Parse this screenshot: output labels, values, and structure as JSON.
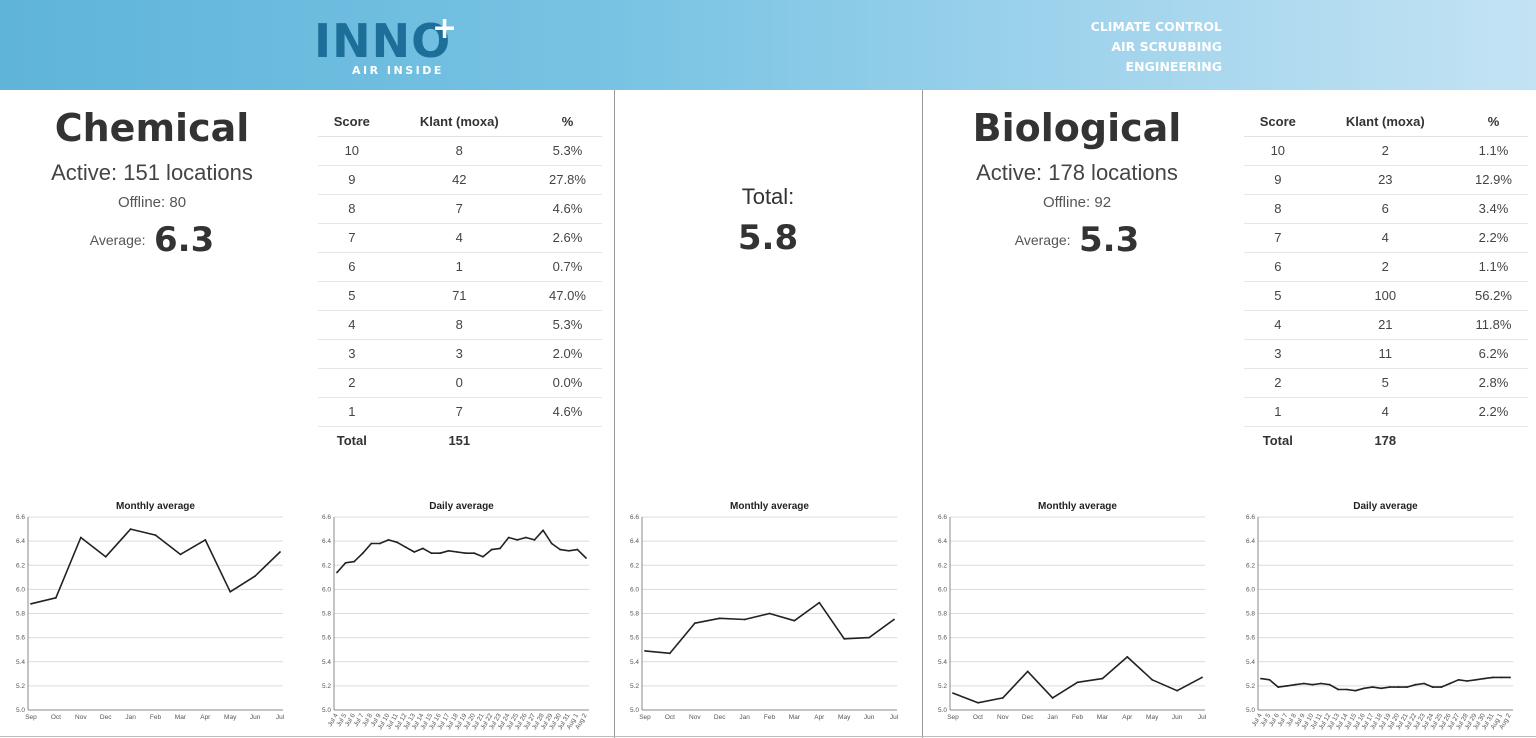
{
  "header": {
    "logo_text": "INNO",
    "logo_plus": "+",
    "logo_sub": "AIR INSIDE",
    "tagline": [
      "CLIMATE CONTROL",
      "AIR SCRUBBING",
      "ENGINEERING"
    ],
    "bg_color": "#6fbde0",
    "logo_color": "#1d6f9a"
  },
  "chemical": {
    "title": "Chemical",
    "active": "Active: 151 locations",
    "offline": "Offline: 80",
    "average_label": "Average:",
    "average_value": "6.3",
    "table": {
      "headers": [
        "Score",
        "Klant (moxa)",
        "%"
      ],
      "rows": [
        [
          "10",
          "8",
          "5.3%"
        ],
        [
          "9",
          "42",
          "27.8%"
        ],
        [
          "8",
          "7",
          "4.6%"
        ],
        [
          "7",
          "4",
          "2.6%"
        ],
        [
          "6",
          "1",
          "0.7%"
        ],
        [
          "5",
          "71",
          "47.0%"
        ],
        [
          "4",
          "8",
          "5.3%"
        ],
        [
          "3",
          "3",
          "2.0%"
        ],
        [
          "2",
          "0",
          "0.0%"
        ],
        [
          "1",
          "7",
          "4.6%"
        ]
      ],
      "total_label": "Total",
      "total_value": "151"
    }
  },
  "total": {
    "label": "Total:",
    "value": "5.8"
  },
  "biological": {
    "title": "Biological",
    "active": "Active: 178 locations",
    "offline": "Offline: 92",
    "average_label": "Average:",
    "average_value": "5.3",
    "table": {
      "headers": [
        "Score",
        "Klant (moxa)",
        "%"
      ],
      "rows": [
        [
          "10",
          "2",
          "1.1%"
        ],
        [
          "9",
          "23",
          "12.9%"
        ],
        [
          "8",
          "6",
          "3.4%"
        ],
        [
          "7",
          "4",
          "2.2%"
        ],
        [
          "6",
          "2",
          "1.1%"
        ],
        [
          "5",
          "100",
          "56.2%"
        ],
        [
          "4",
          "21",
          "11.8%"
        ],
        [
          "3",
          "11",
          "6.2%"
        ],
        [
          "2",
          "5",
          "2.8%"
        ],
        [
          "1",
          "4",
          "2.2%"
        ]
      ],
      "total_label": "Total",
      "total_value": "178"
    }
  },
  "chart_data": [
    {
      "id": "chem-monthly",
      "type": "line",
      "title": "Monthly average",
      "x": [
        "Sep",
        "Oct",
        "Nov",
        "Dec",
        "Jan",
        "Feb",
        "Mar",
        "Apr",
        "May",
        "Jun",
        "Jul"
      ],
      "values": [
        5.88,
        5.93,
        6.43,
        6.27,
        6.5,
        6.45,
        6.29,
        6.41,
        5.98,
        6.11,
        6.31
      ],
      "ylim": [
        5.0,
        6.6
      ],
      "yticks": [
        "5.0",
        "5.2",
        "5.4",
        "5.6",
        "5.8",
        "6.0",
        "6.2",
        "6.4",
        "6.6"
      ],
      "grid": true
    },
    {
      "id": "chem-daily",
      "type": "line",
      "title": "Daily average",
      "x": [
        "Jul 4",
        "Jul 5",
        "Jul 6",
        "Jul 7",
        "Jul 8",
        "Jul 9",
        "Jul 10",
        "Jul 11",
        "Jul 12",
        "Jul 13",
        "Jul 14",
        "Jul 15",
        "Jul 16",
        "Jul 17",
        "Jul 18",
        "Jul 19",
        "Jul 20",
        "Jul 21",
        "Jul 22",
        "Jul 23",
        "Jul 24",
        "Jul 25",
        "Jul 26",
        "Jul 27",
        "Jul 28",
        "Jul 29",
        "Jul 30",
        "Jul 31",
        "Aug 1",
        "Aug 2"
      ],
      "values": [
        6.14,
        6.22,
        6.23,
        6.3,
        6.38,
        6.38,
        6.41,
        6.39,
        6.35,
        6.31,
        6.34,
        6.3,
        6.3,
        6.32,
        6.31,
        6.3,
        6.3,
        6.27,
        6.33,
        6.34,
        6.43,
        6.41,
        6.43,
        6.41,
        6.49,
        6.38,
        6.33,
        6.32,
        6.33,
        6.26
      ],
      "ylim": [
        5.0,
        6.6
      ],
      "yticks": [
        "5.0",
        "5.2",
        "5.4",
        "5.6",
        "5.8",
        "6.0",
        "6.2",
        "6.4",
        "6.6"
      ],
      "grid": true
    },
    {
      "id": "total-monthly",
      "type": "line",
      "title": "Monthly average",
      "x": [
        "Sep",
        "Oct",
        "Nov",
        "Dec",
        "Jan",
        "Feb",
        "Mar",
        "Apr",
        "May",
        "Jun",
        "Jul"
      ],
      "values": [
        5.49,
        5.47,
        5.72,
        5.76,
        5.75,
        5.8,
        5.74,
        5.89,
        5.59,
        5.6,
        5.75
      ],
      "ylim": [
        5.0,
        6.6
      ],
      "yticks": [
        "5.0",
        "5.2",
        "5.4",
        "5.6",
        "5.8",
        "6.0",
        "6.2",
        "6.4",
        "6.6"
      ],
      "grid": true
    },
    {
      "id": "bio-monthly",
      "type": "line",
      "title": "Monthly average",
      "x": [
        "Sep",
        "Oct",
        "Nov",
        "Dec",
        "Jan",
        "Feb",
        "Mar",
        "Apr",
        "May",
        "Jun",
        "Jul"
      ],
      "values": [
        5.14,
        5.06,
        5.1,
        5.32,
        5.1,
        5.23,
        5.26,
        5.44,
        5.25,
        5.16,
        5.27
      ],
      "ylim": [
        5.0,
        6.6
      ],
      "yticks": [
        "5.0",
        "5.2",
        "5.4",
        "5.6",
        "5.8",
        "6.0",
        "6.2",
        "6.4",
        "6.6"
      ],
      "grid": true
    },
    {
      "id": "bio-daily",
      "type": "line",
      "title": "Daily average",
      "x": [
        "Jul 4",
        "Jul 5",
        "Jul 6",
        "Jul 7",
        "Jul 8",
        "Jul 9",
        "Jul 10",
        "Jul 11",
        "Jul 12",
        "Jul 13",
        "Jul 14",
        "Jul 15",
        "Jul 16",
        "Jul 17",
        "Jul 18",
        "Jul 19",
        "Jul 20",
        "Jul 21",
        "Jul 22",
        "Jul 23",
        "Jul 24",
        "Jul 25",
        "Jul 26",
        "Jul 27",
        "Jul 28",
        "Jul 29",
        "Jul 30",
        "Jul 31",
        "Aug 1",
        "Aug 2"
      ],
      "values": [
        5.26,
        5.25,
        5.19,
        5.2,
        5.21,
        5.22,
        5.21,
        5.22,
        5.21,
        5.17,
        5.17,
        5.16,
        5.18,
        5.19,
        5.18,
        5.19,
        5.19,
        5.19,
        5.21,
        5.22,
        5.19,
        5.19,
        5.22,
        5.25,
        5.24,
        5.25,
        5.26,
        5.27,
        5.27,
        5.27
      ],
      "ylim": [
        5.0,
        6.6
      ],
      "yticks": [
        "5.0",
        "5.2",
        "5.4",
        "5.6",
        "5.8",
        "6.0",
        "6.2",
        "6.4",
        "6.6"
      ],
      "grid": true
    }
  ]
}
